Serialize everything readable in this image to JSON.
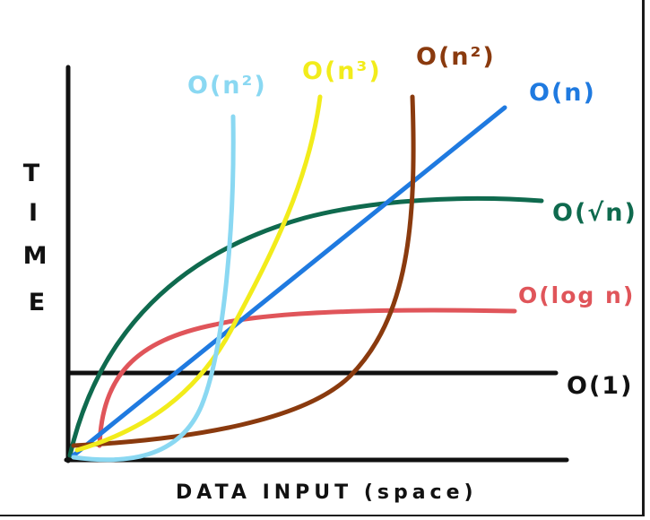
{
  "axes": {
    "ylabel": "TIME",
    "xlabel": "DATA INPUT (space)"
  },
  "curves": [
    {
      "id": "constant",
      "label": "O(1)",
      "color": "#111111"
    },
    {
      "id": "log",
      "label": "O(log n)",
      "color": "#e0555a"
    },
    {
      "id": "sqrt",
      "label": "O(√n)",
      "color": "#0f6a4e"
    },
    {
      "id": "linear",
      "label": "O(n)",
      "color": "#1f7ae0"
    },
    {
      "id": "quad_brown",
      "label": "O(n²)",
      "color": "#8a3a0e"
    },
    {
      "id": "cubic",
      "label": "O(n³)",
      "color": "#f2ec1b"
    },
    {
      "id": "quad_blue",
      "label": "O(n²)",
      "color": "#8ad8f2"
    }
  ]
}
